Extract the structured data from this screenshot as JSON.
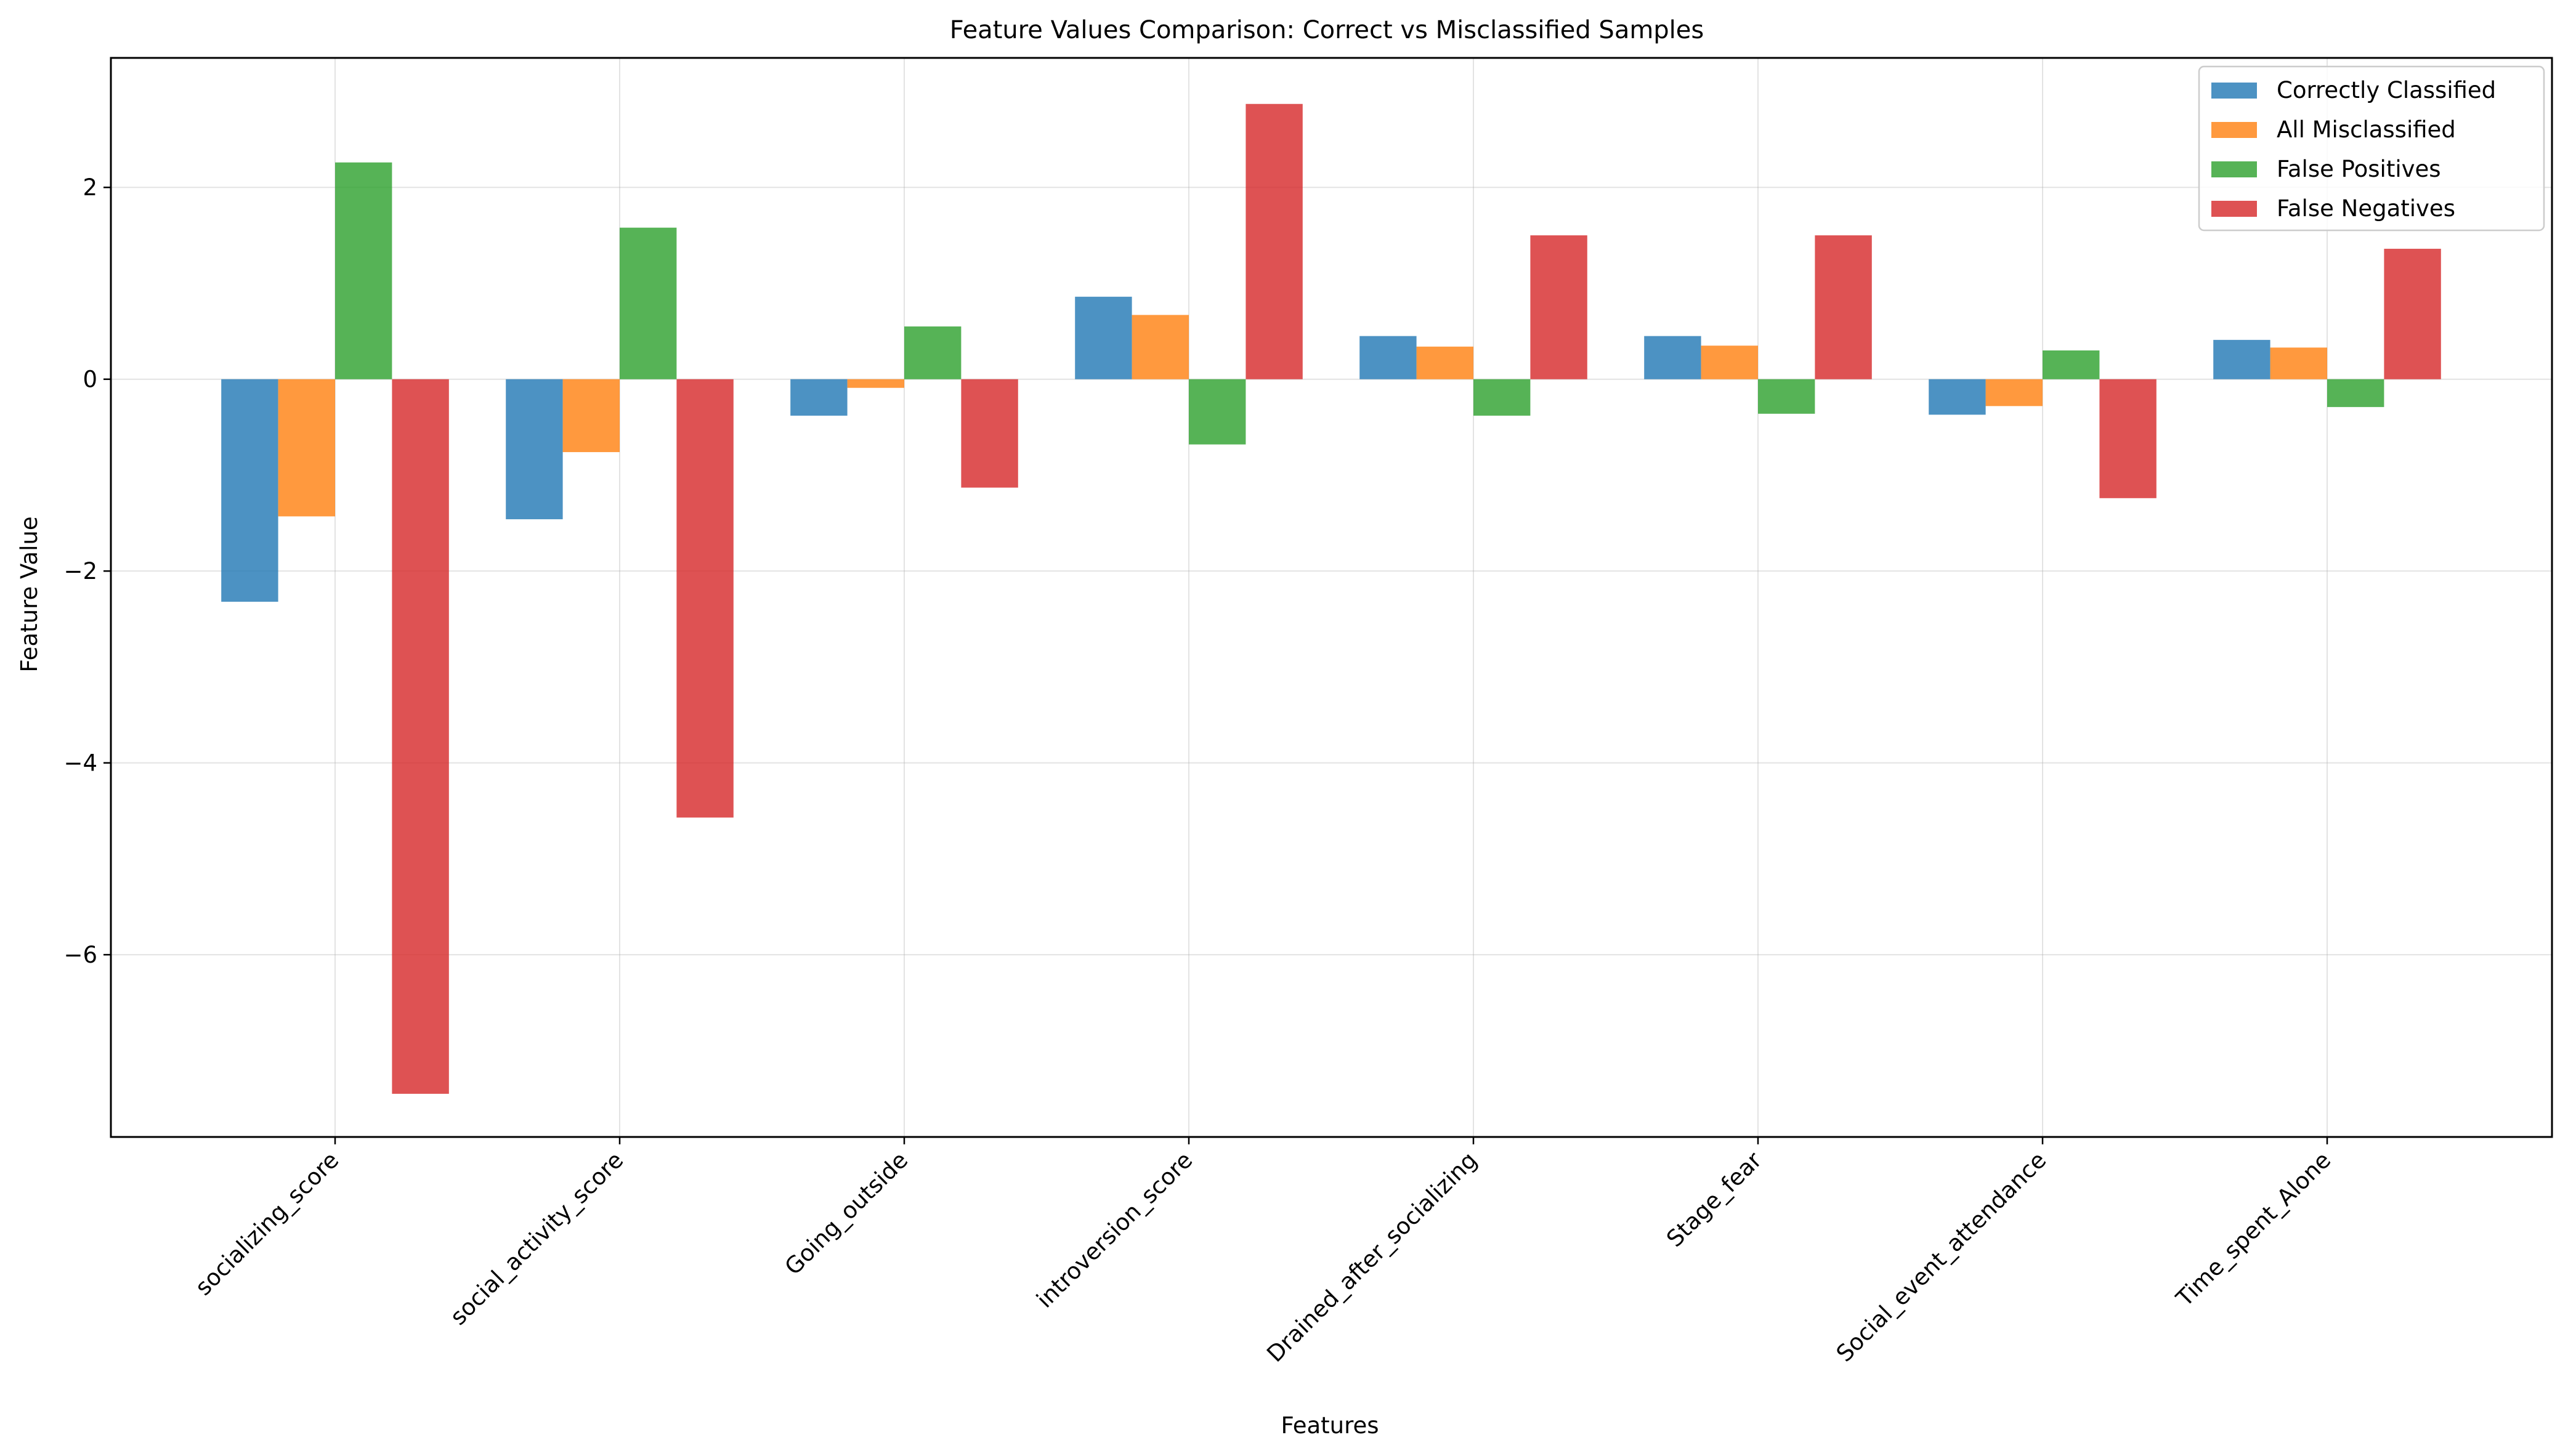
{
  "chart_data": {
    "type": "bar",
    "title": "Feature Values Comparison: Correct vs Misclassified Samples",
    "xlabel": "Features",
    "ylabel": "Feature Value",
    "ylim": [
      -7.9,
      3.35
    ],
    "yticks": [
      -6,
      -4,
      -2,
      0,
      2
    ],
    "grid": true,
    "legend_position": "top-right",
    "categories": [
      "socializing_score",
      "social_activity_score",
      "Going_outside",
      "introversion_score",
      "Drained_after_socializing",
      "Stage_fear",
      "Social_event_attendance",
      "Time_spent_Alone"
    ],
    "series": [
      {
        "name": "Correctly Classified",
        "color": "#1f77b4",
        "values": [
          -2.32,
          -1.46,
          -0.38,
          0.86,
          0.45,
          0.45,
          -0.37,
          0.41
        ]
      },
      {
        "name": "All Misclassified",
        "color": "#ff7f0e",
        "values": [
          -1.43,
          -0.76,
          -0.09,
          0.67,
          0.34,
          0.35,
          -0.28,
          0.33
        ]
      },
      {
        "name": "False Positives",
        "color": "#2ca02c",
        "values": [
          2.26,
          1.58,
          0.55,
          -0.68,
          -0.38,
          -0.36,
          0.3,
          -0.29
        ]
      },
      {
        "name": "False Negatives",
        "color": "#d62728",
        "values": [
          -7.45,
          -4.57,
          -1.13,
          2.87,
          1.5,
          1.5,
          -1.24,
          1.36
        ]
      }
    ]
  }
}
